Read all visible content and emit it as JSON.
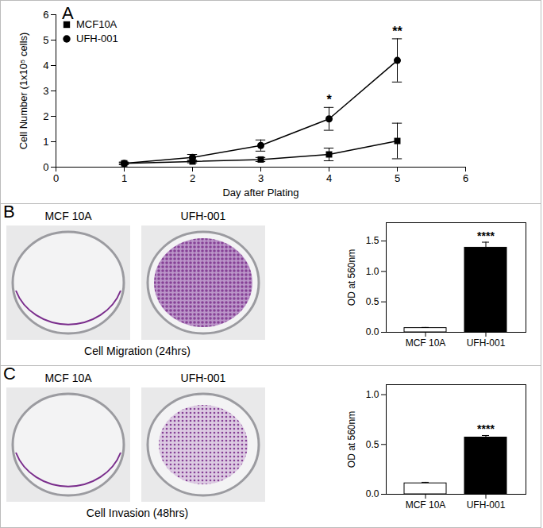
{
  "chart_data": [
    {
      "type": "line",
      "panel": "A",
      "x_label": "Day after Plating",
      "y_label": "Cell Number (1x10⁵ cells)",
      "x": [
        1,
        2,
        3,
        4,
        5
      ],
      "series": [
        {
          "name": "MCF10A",
          "color": "#000000",
          "marker": "square",
          "values": [
            0.15,
            0.22,
            0.3,
            0.5,
            1.03
          ],
          "errors": [
            0.03,
            0.05,
            0.08,
            0.25,
            0.7
          ]
        },
        {
          "name": "UFH-001",
          "color": "#000000",
          "marker": "circle",
          "values": [
            0.15,
            0.38,
            0.85,
            1.9,
            4.2
          ],
          "errors": [
            0.05,
            0.12,
            0.22,
            0.45,
            0.85
          ]
        }
      ],
      "annotations": [
        {
          "x": 4,
          "text": "*"
        },
        {
          "x": 5,
          "text": "**"
        }
      ],
      "xlim": [
        0,
        6
      ],
      "xticks": [
        0,
        1,
        2,
        3,
        4,
        5,
        6
      ],
      "ylim": [
        0,
        6
      ],
      "yticks": [
        0,
        1,
        2,
        3,
        4,
        5,
        6
      ],
      "legend": "top-left"
    },
    {
      "type": "bar",
      "panel": "B",
      "images": {
        "labels": [
          "MCF 10A",
          "UFH-001"
        ],
        "caption": "Cell Migration (24hrs)"
      },
      "y_label": "OD at 560nm",
      "categories": [
        "MCF 10A",
        "UFH-001"
      ],
      "values": [
        0.07,
        1.39
      ],
      "errors": [
        0.01,
        0.09
      ],
      "colors": [
        "#ffffff",
        "#000000"
      ],
      "annotations": [
        {
          "category": "UFH-001",
          "text": "****"
        }
      ],
      "ylim": [
        0,
        1.8
      ],
      "yticks": [
        {
          "value": 0,
          "label": "0.0"
        },
        {
          "value": 0.5,
          "label": "0.5"
        },
        {
          "value": 1,
          "label": "1.0"
        },
        {
          "value": 1.5,
          "label": "1.5"
        }
      ]
    },
    {
      "type": "bar",
      "panel": "C",
      "images": {
        "labels": [
          "MCF 10A",
          "UFH-001"
        ],
        "caption": "Cell Invasion (48hrs)"
      },
      "y_label": "OD at 560nm",
      "categories": [
        "MCF 10A",
        "UFH-001"
      ],
      "values": [
        0.11,
        0.57
      ],
      "errors": [
        0.01,
        0.02
      ],
      "colors": [
        "#ffffff",
        "#000000"
      ],
      "annotations": [
        {
          "category": "UFH-001",
          "text": "****"
        }
      ],
      "ylim": [
        0,
        1.1
      ],
      "yticks": [
        {
          "value": 0,
          "label": "0.0"
        },
        {
          "value": 0.5,
          "label": "0.5"
        },
        {
          "value": 1,
          "label": "1.0"
        }
      ]
    }
  ]
}
